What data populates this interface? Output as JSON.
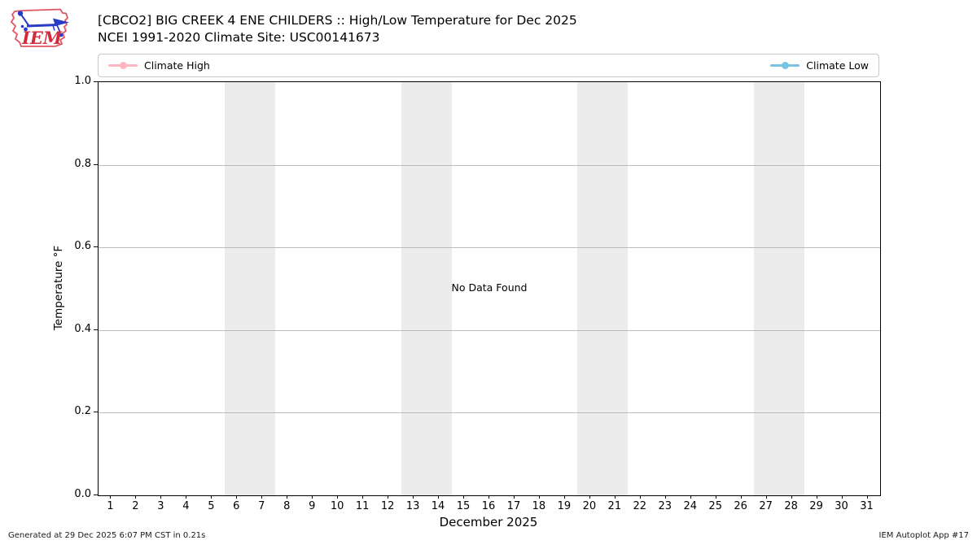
{
  "header": {
    "title_line1": "[CBCO2] BIG CREEK 4 ENE CHILDERS :: High/Low Temperature for Dec 2025",
    "title_line2": "NCEI 1991-2020 Climate Site: USC00141673",
    "logo_text": "IEM"
  },
  "legend": {
    "high": {
      "label": "Climate High",
      "color": "#ffb6c1"
    },
    "low": {
      "label": "Climate Low",
      "color": "#79c3e3"
    }
  },
  "plot": {
    "no_data_text": "No Data Found"
  },
  "chart_data": {
    "type": "line",
    "title": "[CBCO2] BIG CREEK 4 ENE CHILDERS :: High/Low Temperature for Dec 2025",
    "subtitle": "NCEI 1991-2020 Climate Site: USC00141673",
    "xlabel": "December 2025",
    "ylabel": "Temperature °F",
    "ylim": [
      0.0,
      1.0
    ],
    "yticks": [
      "0.0",
      "0.2",
      "0.4",
      "0.6",
      "0.8",
      "1.0"
    ],
    "xlim_days": [
      0.5,
      31.5
    ],
    "xticks": [
      "1",
      "2",
      "3",
      "4",
      "5",
      "6",
      "7",
      "8",
      "9",
      "10",
      "11",
      "12",
      "13",
      "14",
      "15",
      "16",
      "17",
      "18",
      "19",
      "20",
      "21",
      "22",
      "23",
      "24",
      "25",
      "26",
      "27",
      "28",
      "29",
      "30",
      "31"
    ],
    "series": [
      {
        "name": "Climate High",
        "color": "#ffb6c1",
        "values": []
      },
      {
        "name": "Climate Low",
        "color": "#79c3e3",
        "values": []
      }
    ],
    "annotations": [
      "No Data Found"
    ],
    "weekend_shading_days": [
      [
        5.5,
        7.5
      ],
      [
        12.5,
        14.5
      ],
      [
        19.5,
        21.5
      ],
      [
        26.5,
        28.5
      ]
    ],
    "shading_color": "#ececec",
    "grid": "horizontal",
    "legend_position": "top full-width, high left / low right"
  },
  "footer": {
    "left": "Generated at 29 Dec 2025 6:07 PM CST in 0.21s",
    "right": "IEM Autoplot App #17"
  }
}
